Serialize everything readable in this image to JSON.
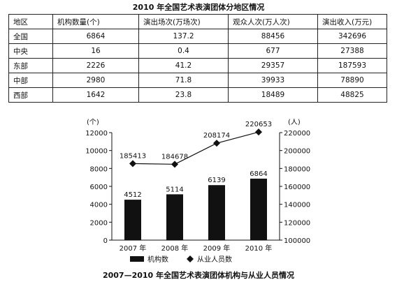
{
  "table": {
    "title": "2010 年全国艺术表演团体分地区情况",
    "headers": [
      "地区",
      "机构数量(个)",
      "演出场次(万场次)",
      "观众人次(万人次)",
      "演出收入(万元)"
    ],
    "rows": [
      [
        "全国",
        "6864",
        "137.2",
        "88456",
        "342696"
      ],
      [
        "中央",
        "16",
        "0.4",
        "677",
        "27388"
      ],
      [
        "东部",
        "2226",
        "41.2",
        "29357",
        "187593"
      ],
      [
        "中部",
        "2980",
        "71.8",
        "39933",
        "78890"
      ],
      [
        "西部",
        "1642",
        "23.8",
        "18489",
        "48825"
      ]
    ]
  },
  "chart_data": {
    "type": "bar",
    "title": "2007—2010 年全国艺术表演团体机构与从业人员情况",
    "categories": [
      "2007 年",
      "2008 年",
      "2009 年",
      "2010 年"
    ],
    "series": [
      {
        "name": "机构数",
        "type": "bar",
        "axis": "left",
        "values": [
          4512,
          5114,
          6139,
          6864
        ],
        "color": "#111111"
      },
      {
        "name": "从业人员数",
        "type": "line",
        "axis": "right",
        "values": [
          185413,
          184678,
          208174,
          220653
        ],
        "color": "#111111"
      }
    ],
    "ylabel_left": "(个)",
    "ylabel_right": "(人)",
    "ylim_left": [
      0,
      12000
    ],
    "yticks_left": [
      0,
      2000,
      4000,
      6000,
      8000,
      10000,
      12000
    ],
    "ylim_right": [
      100000,
      220000
    ],
    "yticks_right": [
      100000,
      120000,
      140000,
      160000,
      180000,
      200000,
      220000
    ],
    "legend_position": "bottom",
    "grid": false
  }
}
